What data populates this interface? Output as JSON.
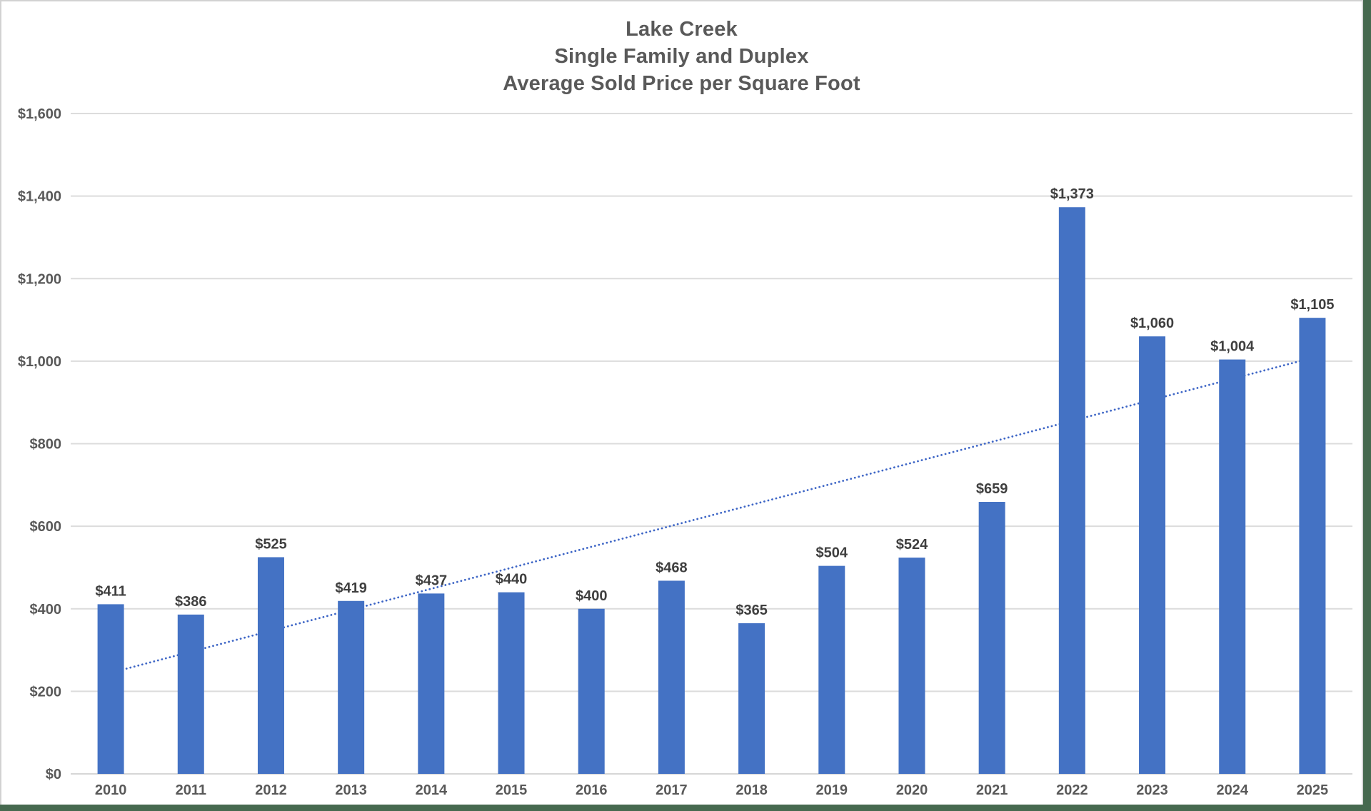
{
  "chart_data": {
    "type": "bar",
    "title_lines": [
      "Lake Creek",
      "Single Family and Duplex",
      "Average Sold Price per Square Foot"
    ],
    "categories": [
      "2010",
      "2011",
      "2012",
      "2013",
      "2014",
      "2015",
      "2016",
      "2017",
      "2018",
      "2019",
      "2020",
      "2021",
      "2022",
      "2023",
      "2024",
      "2025"
    ],
    "values": [
      411,
      386,
      525,
      419,
      437,
      440,
      400,
      468,
      365,
      504,
      524,
      659,
      1373,
      1060,
      1004,
      1105
    ],
    "value_labels": [
      "$411",
      "$386",
      "$525",
      "$419",
      "$437",
      "$440",
      "$400",
      "$468",
      "$365",
      "$504",
      "$524",
      "$659",
      "$1,373",
      "$1,060",
      "$1,004",
      "$1,105"
    ],
    "xlabel": "",
    "ylabel": "",
    "ylim": [
      0,
      1600
    ],
    "y_ticks": [
      {
        "value": 0,
        "label": "$0"
      },
      {
        "value": 200,
        "label": "$200"
      },
      {
        "value": 400,
        "label": "$400"
      },
      {
        "value": 600,
        "label": "$600"
      },
      {
        "value": 800,
        "label": "$800"
      },
      {
        "value": 1000,
        "label": "$1,000"
      },
      {
        "value": 1200,
        "label": "$1,200"
      },
      {
        "value": 1400,
        "label": "$1,400"
      },
      {
        "value": 1600,
        "label": "$1,600"
      }
    ],
    "grid": true,
    "legend": "none",
    "trendline": {
      "style": "dotted",
      "start_value": 245,
      "end_value": 1008
    },
    "colors": {
      "bar": "#4472C4",
      "trendline": "#3E66C6",
      "gridline": "#DCDCDC",
      "axis_line": "#D6D6D6",
      "axis_text": "#595959",
      "value_label_text": "#3F3F3F",
      "title_text": "#595959",
      "chart_background": "#FFFFFF",
      "window_edge": "#46694F",
      "frame_border": "#D2D2D2"
    }
  }
}
